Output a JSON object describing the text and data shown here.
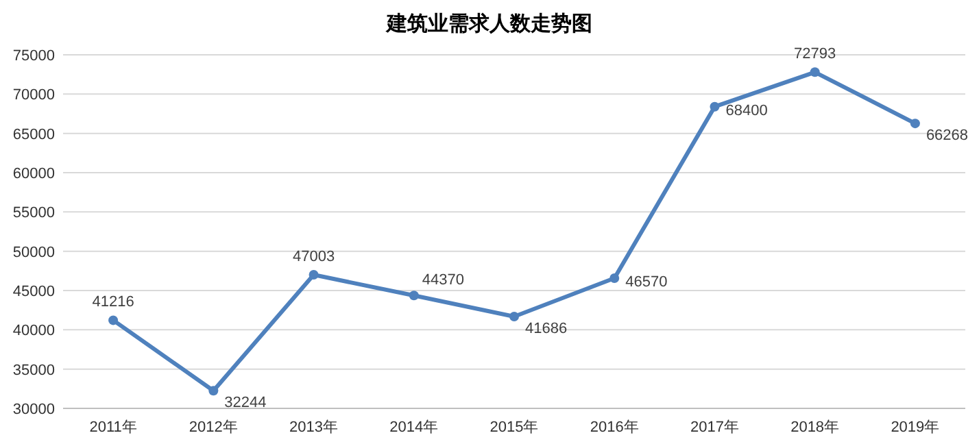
{
  "chart_data": {
    "type": "line",
    "title": "建筑业需求人数走势图",
    "categories": [
      "2011年",
      "2012年",
      "2013年",
      "2014年",
      "2015年",
      "2016年",
      "2017年",
      "2018年",
      "2019年"
    ],
    "series": [
      {
        "color": "#4f81bd",
        "values": [
          41216,
          32244,
          47003,
          44370,
          41686,
          46570,
          68400,
          72793,
          66268
        ]
      }
    ],
    "ylim": [
      30000,
      75000
    ],
    "yticks": [
      30000,
      35000,
      40000,
      45000,
      50000,
      55000,
      60000,
      65000,
      70000,
      75000
    ],
    "grid": "y",
    "marker": "circle",
    "line_style": "solid",
    "data_labels": true
  }
}
